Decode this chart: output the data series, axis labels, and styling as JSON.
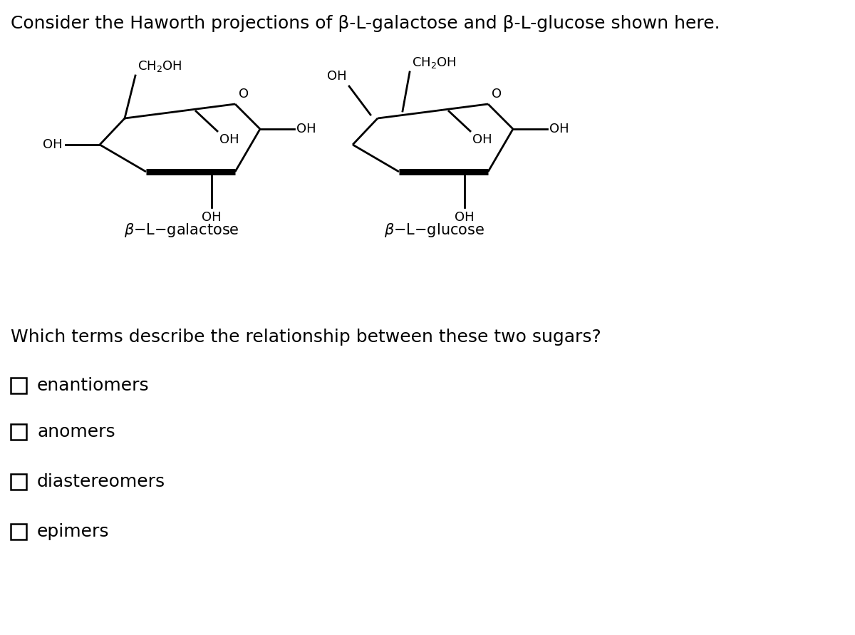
{
  "title": "Consider the Haworth projections of β-L-galactose and β-L-glucose shown here.",
  "question": "Which terms describe the relationship between these two sugars?",
  "choices": [
    "enantiomers",
    "anomers",
    "diastereomers",
    "epimers"
  ],
  "bg_color": "#ffffff",
  "text_color": "#000000",
  "title_fontsize": 18,
  "question_fontsize": 18,
  "choice_fontsize": 18,
  "lw_thin": 2.0,
  "lw_thick": 6.5
}
